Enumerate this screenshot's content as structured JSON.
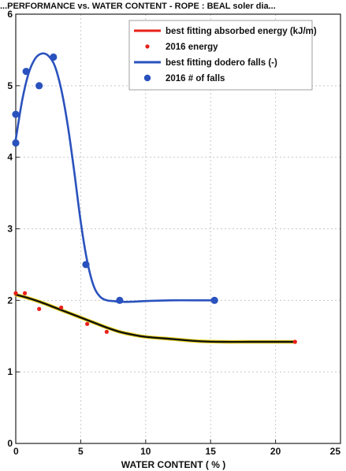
{
  "chart_data": {
    "type": "line",
    "title": "...PERFORMANCE vs. WATER CONTENT - ROPE : BEAL soler dia...",
    "xlabel": "WATER CONTENT ( % )",
    "ylabel": "",
    "xlim": [
      0,
      25
    ],
    "ylim": [
      0,
      6
    ],
    "x_ticks": [
      0,
      5,
      10,
      15,
      20,
      25
    ],
    "y_ticks": [
      0,
      1,
      2,
      3,
      4,
      5,
      6
    ],
    "grid": true,
    "legend_position": "top-right",
    "series": [
      {
        "name": "best fitting absorbed energy (kJ/m)",
        "kind": "line",
        "color": "#e8201a",
        "x": [
          0,
          1,
          2,
          3,
          4,
          5,
          6,
          7,
          8,
          9,
          10,
          12,
          14,
          16,
          18,
          20,
          21.5
        ],
        "y": [
          2.08,
          2.03,
          1.97,
          1.9,
          1.83,
          1.76,
          1.69,
          1.62,
          1.56,
          1.52,
          1.49,
          1.46,
          1.43,
          1.42,
          1.42,
          1.42,
          1.42
        ]
      },
      {
        "name": "2016 energy",
        "kind": "scatter",
        "color": "#e8201a",
        "x": [
          0,
          0.7,
          1.8,
          3.5,
          5.5,
          7,
          21.5
        ],
        "y": [
          2.1,
          2.1,
          1.88,
          1.9,
          1.67,
          1.56,
          1.42
        ]
      },
      {
        "name": "best fitting dodero falls (-)",
        "kind": "line",
        "color": "#2a52be",
        "x": [
          0,
          0.5,
          1,
          1.5,
          2,
          2.5,
          3,
          3.5,
          4,
          4.5,
          5,
          5.5,
          6,
          6.5,
          7,
          7.5,
          8,
          9,
          10,
          12,
          14,
          15.3
        ],
        "y": [
          4.25,
          4.8,
          5.18,
          5.38,
          5.45,
          5.42,
          5.28,
          4.95,
          4.45,
          3.8,
          3.1,
          2.55,
          2.2,
          2.05,
          2.0,
          1.99,
          1.98,
          1.98,
          1.99,
          2.0,
          2.0,
          2.0
        ]
      },
      {
        "name": "2016 # of falls",
        "kind": "scatter",
        "color": "#2a52be",
        "x": [
          0,
          0,
          0.8,
          1.8,
          2.9,
          5.4,
          8,
          15.3
        ],
        "y": [
          4.2,
          4.6,
          5.2,
          5.0,
          5.4,
          2.5,
          2.0,
          2.0
        ]
      }
    ]
  }
}
